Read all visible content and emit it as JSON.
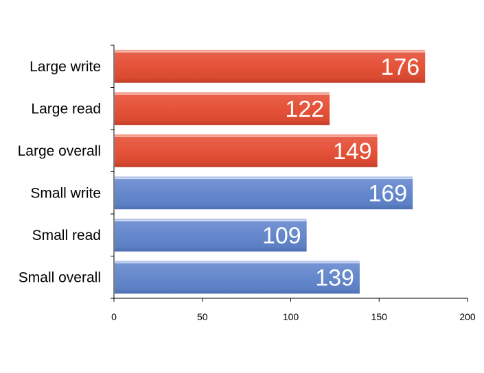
{
  "chart_data": {
    "type": "bar",
    "orientation": "horizontal",
    "categories": [
      "Large write",
      "Large read",
      "Large overall",
      "Small write",
      "Small read",
      "Small overall"
    ],
    "values": [
      176,
      122,
      149,
      169,
      109,
      139
    ],
    "value_labels": [
      "176",
      "122",
      "149",
      "169",
      "109",
      "139"
    ],
    "bar_colors": [
      "#e5533a",
      "#e5533a",
      "#e5533a",
      "#6688cc",
      "#6688cc",
      "#6688cc"
    ],
    "xlim": [
      0,
      200
    ],
    "xticks": [
      0,
      50,
      100,
      150,
      200
    ],
    "xtick_labels": [
      "0",
      "50",
      "100",
      "150",
      "200"
    ],
    "title": "",
    "xlabel": "",
    "ylabel": "",
    "grid": false,
    "legend": "none"
  }
}
